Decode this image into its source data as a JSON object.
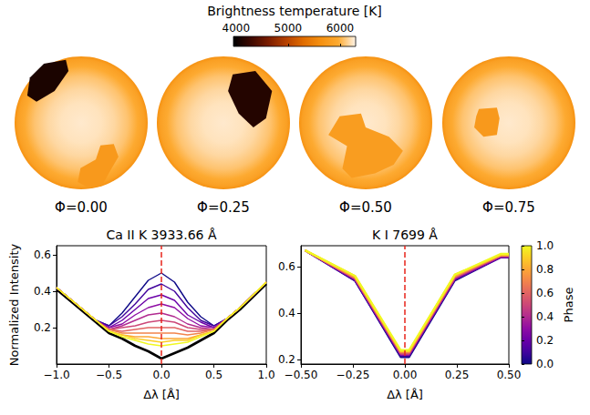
{
  "chart_data": [
    {
      "type": "disk_maps",
      "colorbar": {
        "label": "Brightness temperature [K]",
        "range": [
          3950,
          6300
        ],
        "ticks": [
          4000,
          5000,
          6000
        ],
        "colors": [
          "#000000",
          "#3c0800",
          "#7a1c00",
          "#b54000",
          "#e06c00",
          "#f59010",
          "#fdaa30",
          "#fff4e8"
        ]
      },
      "panels": [
        {
          "label": "Φ=0.00",
          "photosphere": {
            "center": 6250,
            "limb": 5650
          },
          "spots": [
            {
              "temperature": 4100,
              "outline": [
                [
                  -0.56,
                  0.89
                ],
                [
                  -0.23,
                  0.95
                ],
                [
                  -0.19,
                  0.78
                ],
                [
                  -0.4,
                  0.48
                ],
                [
                  -0.67,
                  0.32
                ],
                [
                  -0.81,
                  0.41
                ],
                [
                  -0.77,
                  0.68
                ]
              ]
            },
            {
              "temperature": 5750,
              "outline": [
                [
                  0.29,
                  -0.34
                ],
                [
                  0.49,
                  -0.32
                ],
                [
                  0.56,
                  -0.51
                ],
                [
                  0.42,
                  -0.75
                ],
                [
                  0.32,
                  -0.93
                ],
                [
                  0.08,
                  -0.96
                ],
                [
                  -0.05,
                  -0.89
                ],
                [
                  -0.01,
                  -0.68
                ],
                [
                  0.22,
                  -0.55
                ]
              ]
            }
          ]
        },
        {
          "label": "Φ=0.25",
          "photosphere": {
            "center": 6250,
            "limb": 5650
          },
          "spots": [
            {
              "temperature": 4150,
              "outline": [
                [
                  0.14,
                  0.73
                ],
                [
                  0.48,
                  0.78
                ],
                [
                  0.73,
                  0.48
                ],
                [
                  0.64,
                  0.07
                ],
                [
                  0.45,
                  -0.07
                ],
                [
                  0.23,
                  0.14
                ],
                [
                  0.07,
                  0.48
                ]
              ]
            }
          ]
        },
        {
          "label": "Φ=0.50",
          "photosphere": {
            "center": 6250,
            "limb": 5650
          },
          "spots": [
            {
              "temperature": 5800,
              "outline": [
                [
                  -0.39,
                  0.1
                ],
                [
                  -0.07,
                  0.14
                ],
                [
                  0.0,
                  -0.07
                ],
                [
                  0.35,
                  -0.21
                ],
                [
                  0.56,
                  -0.42
                ],
                [
                  0.42,
                  -0.63
                ],
                [
                  0.14,
                  -0.76
                ],
                [
                  -0.21,
                  -0.83
                ],
                [
                  -0.35,
                  -0.69
                ],
                [
                  -0.28,
                  -0.35
                ],
                [
                  -0.56,
                  -0.18
                ]
              ]
            }
          ]
        },
        {
          "label": "Φ=0.75",
          "photosphere": {
            "center": 6250,
            "limb": 5650
          },
          "spots": [
            {
              "temperature": 5750,
              "outline": [
                [
                  -0.45,
                  0.21
                ],
                [
                  -0.18,
                  0.23
                ],
                [
                  -0.14,
                  0.07
                ],
                [
                  -0.18,
                  -0.18
                ],
                [
                  -0.38,
                  -0.21
                ],
                [
                  -0.52,
                  -0.07
                ],
                [
                  -0.49,
                  0.1
                ]
              ]
            }
          ]
        }
      ]
    },
    {
      "type": "line",
      "title": "Ca II K 3933.66 Å",
      "xlabel": "Δλ [Å]",
      "ylabel": "Normalized Intensity",
      "xlim": [
        -1,
        1
      ],
      "ylim": [
        0.0,
        0.65
      ],
      "xticks": [
        {
          "value": -1,
          "label": "−1.0"
        },
        {
          "value": -0.5,
          "label": "−0.5"
        },
        {
          "value": 0,
          "label": "0.0"
        },
        0.5,
        {
          "value": 1,
          "label": "1.0"
        }
      ],
      "yticks": [
        0.2,
        0.4,
        0.6
      ],
      "grid": false,
      "vlines": [
        {
          "x": 0,
          "color": "#e8241b",
          "line_style": "dashed"
        }
      ],
      "x": [
        -1,
        -0.875,
        -0.75,
        -0.625,
        -0.5,
        -0.375,
        -0.25,
        -0.125,
        0,
        0.125,
        0.25,
        0.375,
        0.5,
        0.625,
        0.75,
        0.875,
        1
      ],
      "series": [
        {
          "color": "#000000",
          "values": [
            0.41,
            0.35,
            0.29,
            0.23,
            0.17,
            0.14,
            0.1,
            0.07,
            0.03,
            0.06,
            0.09,
            0.13,
            0.17,
            0.24,
            0.3,
            0.37,
            0.44
          ]
        },
        {
          "phase": 0.0,
          "color": "#0d0887",
          "values": [
            0.42,
            0.36,
            0.3,
            0.24,
            0.21,
            0.28,
            0.37,
            0.46,
            0.5,
            0.45,
            0.34,
            0.26,
            0.21,
            0.25,
            0.31,
            0.38,
            0.45
          ]
        },
        {
          "phase": 0.1,
          "color": "#41049d",
          "values": [
            0.42,
            0.36,
            0.3,
            0.24,
            0.21,
            0.26,
            0.33,
            0.41,
            0.44,
            0.4,
            0.31,
            0.24,
            0.21,
            0.25,
            0.31,
            0.38,
            0.45
          ]
        },
        {
          "phase": 0.2,
          "color": "#6a00a8",
          "values": [
            0.42,
            0.36,
            0.3,
            0.24,
            0.2,
            0.24,
            0.3,
            0.36,
            0.38,
            0.35,
            0.27,
            0.23,
            0.2,
            0.25,
            0.31,
            0.38,
            0.45
          ]
        },
        {
          "phase": 0.3,
          "color": "#8f0da4",
          "values": [
            0.42,
            0.36,
            0.3,
            0.24,
            0.2,
            0.22,
            0.27,
            0.31,
            0.33,
            0.31,
            0.25,
            0.21,
            0.2,
            0.25,
            0.31,
            0.38,
            0.45
          ]
        },
        {
          "phase": 0.4,
          "color": "#b12a90",
          "values": [
            0.42,
            0.36,
            0.3,
            0.24,
            0.19,
            0.21,
            0.24,
            0.27,
            0.28,
            0.26,
            0.22,
            0.2,
            0.19,
            0.25,
            0.31,
            0.38,
            0.45
          ]
        },
        {
          "phase": 0.5,
          "color": "#cc4778",
          "values": [
            0.42,
            0.36,
            0.3,
            0.24,
            0.19,
            0.2,
            0.21,
            0.23,
            0.24,
            0.23,
            0.2,
            0.19,
            0.19,
            0.25,
            0.31,
            0.38,
            0.45
          ]
        },
        {
          "phase": 0.6,
          "color": "#e16462",
          "values": [
            0.42,
            0.36,
            0.3,
            0.24,
            0.19,
            0.18,
            0.19,
            0.2,
            0.2,
            0.2,
            0.18,
            0.18,
            0.19,
            0.25,
            0.31,
            0.38,
            0.45
          ]
        },
        {
          "phase": 0.7,
          "color": "#f2844b",
          "values": [
            0.42,
            0.36,
            0.3,
            0.24,
            0.19,
            0.17,
            0.17,
            0.17,
            0.17,
            0.17,
            0.16,
            0.17,
            0.19,
            0.25,
            0.31,
            0.38,
            0.45
          ]
        },
        {
          "phase": 0.8,
          "color": "#fca636",
          "values": [
            0.42,
            0.36,
            0.3,
            0.24,
            0.18,
            0.16,
            0.15,
            0.15,
            0.14,
            0.14,
            0.14,
            0.16,
            0.18,
            0.25,
            0.31,
            0.38,
            0.45
          ]
        },
        {
          "phase": 0.9,
          "color": "#fcce25",
          "values": [
            0.42,
            0.36,
            0.3,
            0.24,
            0.18,
            0.16,
            0.14,
            0.13,
            0.12,
            0.13,
            0.13,
            0.16,
            0.18,
            0.25,
            0.31,
            0.38,
            0.45
          ]
        },
        {
          "phase": 1.0,
          "color": "#f0f921",
          "values": [
            0.42,
            0.36,
            0.3,
            0.24,
            0.18,
            0.15,
            0.13,
            0.11,
            0.1,
            0.11,
            0.12,
            0.15,
            0.18,
            0.25,
            0.31,
            0.38,
            0.45
          ]
        }
      ]
    },
    {
      "type": "line",
      "title": "K I 7699 Å",
      "xlabel": "Δλ [Å]",
      "xlim": [
        -0.5,
        0.5
      ],
      "ylim": [
        0.18,
        0.69
      ],
      "xticks": [
        {
          "value": -0.5,
          "label": "−0.50"
        },
        {
          "value": -0.25,
          "label": "−0.25"
        },
        {
          "value": 0,
          "label": "0.00"
        },
        0.25,
        {
          "value": 0.5,
          "label": "0.50"
        }
      ],
      "yticks": [
        0.2,
        0.4,
        0.6
      ],
      "grid": false,
      "vlines": [
        {
          "x": 0,
          "color": "#e8241b",
          "line_style": "dashed"
        }
      ],
      "x": [
        -0.48,
        -0.24,
        -0.02,
        0.02,
        0.24,
        0.46,
        0.5
      ],
      "series": [
        {
          "phase": 0.0,
          "color": "#0d0887",
          "values": [
            0.67,
            0.54,
            0.21,
            0.21,
            0.54,
            0.64,
            0.64
          ]
        },
        {
          "phase": 0.1,
          "color": "#41049d",
          "values": [
            0.67,
            0.54,
            0.215,
            0.215,
            0.545,
            0.64,
            0.64
          ]
        },
        {
          "phase": 0.2,
          "color": "#6a00a8",
          "values": [
            0.67,
            0.545,
            0.22,
            0.22,
            0.545,
            0.64,
            0.64
          ]
        },
        {
          "phase": 0.3,
          "color": "#8f0da4",
          "values": [
            0.67,
            0.545,
            0.22,
            0.22,
            0.55,
            0.645,
            0.645
          ]
        },
        {
          "phase": 0.4,
          "color": "#b12a90",
          "values": [
            0.67,
            0.55,
            0.225,
            0.225,
            0.55,
            0.645,
            0.645
          ]
        },
        {
          "phase": 0.5,
          "color": "#cc4778",
          "values": [
            0.67,
            0.55,
            0.225,
            0.225,
            0.555,
            0.645,
            0.645
          ]
        },
        {
          "phase": 0.6,
          "color": "#e16462",
          "values": [
            0.67,
            0.55,
            0.23,
            0.23,
            0.555,
            0.65,
            0.65
          ]
        },
        {
          "phase": 0.7,
          "color": "#f2844b",
          "values": [
            0.67,
            0.555,
            0.23,
            0.23,
            0.56,
            0.65,
            0.65
          ]
        },
        {
          "phase": 0.8,
          "color": "#fca636",
          "values": [
            0.67,
            0.555,
            0.235,
            0.235,
            0.56,
            0.65,
            0.65
          ]
        },
        {
          "phase": 0.9,
          "color": "#fcce25",
          "values": [
            0.67,
            0.56,
            0.235,
            0.235,
            0.565,
            0.65,
            0.65
          ]
        },
        {
          "phase": 1.0,
          "color": "#f0f921",
          "values": [
            0.67,
            0.56,
            0.24,
            0.24,
            0.565,
            0.655,
            0.655
          ]
        }
      ]
    },
    {
      "type": "colorbar",
      "label": "Phase",
      "range": [
        0,
        1
      ],
      "ticks": [
        {
          "value": 0,
          "label": "0.0"
        },
        0.2,
        0.4,
        0.6,
        0.8,
        {
          "value": 1,
          "label": "1.0"
        }
      ],
      "colors": [
        "#0d0887",
        "#41049d",
        "#6a00a8",
        "#8f0da4",
        "#b12a90",
        "#cc4778",
        "#e16462",
        "#f2844b",
        "#fca636",
        "#fcce25",
        "#f0f921"
      ]
    }
  ]
}
